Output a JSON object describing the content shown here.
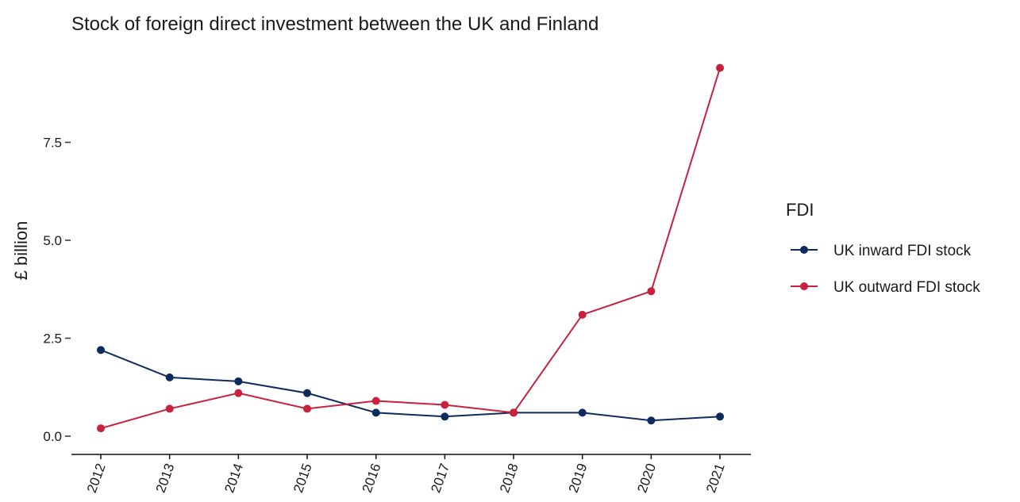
{
  "chart_data": {
    "type": "line",
    "title": "Stock of foreign direct investment between the UK and Finland",
    "xlabel": "",
    "ylabel": "£ billion",
    "categories": [
      "2012",
      "2013",
      "2014",
      "2015",
      "2016",
      "2017",
      "2018",
      "2019",
      "2020",
      "2021"
    ],
    "yticks": [
      "0.0",
      "2.5",
      "5.0",
      "7.5"
    ],
    "ylim": [
      0,
      9.5
    ],
    "grid": false,
    "legend": {
      "title": "FDI",
      "position": "right"
    },
    "series": [
      {
        "name": "UK inward FDI stock",
        "color": "#0d2b5e",
        "values": [
          2.2,
          1.5,
          1.4,
          1.1,
          0.6,
          0.5,
          0.6,
          0.6,
          0.4,
          0.5
        ]
      },
      {
        "name": "UK outward FDI stock",
        "color": "#c8213d",
        "values": [
          0.2,
          0.7,
          1.1,
          0.7,
          0.9,
          0.8,
          0.6,
          3.1,
          3.7,
          9.4
        ]
      }
    ]
  }
}
